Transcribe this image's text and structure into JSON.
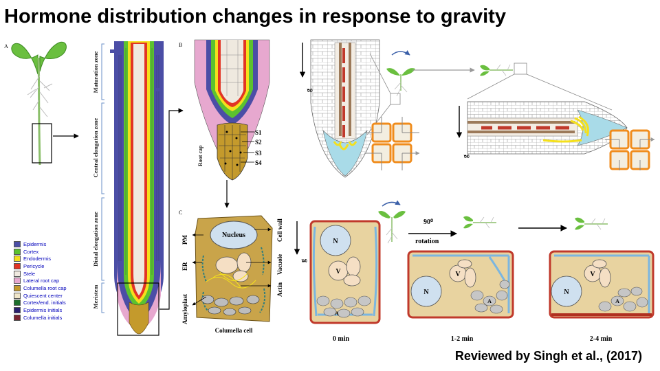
{
  "title": "Hormone distribution changes in response to gravity",
  "citation": "Reviewed by Singh et al., (2017)",
  "panels": {
    "a": "A",
    "b": "B",
    "c": "C"
  },
  "zones": [
    "Maturation zone",
    "Central elongation zone",
    "Distal elongation zone",
    "Meristem"
  ],
  "legend": [
    {
      "label": "Epidermis",
      "color": "#4b4ea6"
    },
    {
      "label": "Cortex",
      "color": "#5cc22f"
    },
    {
      "label": "Endodermis",
      "color": "#f4e01c"
    },
    {
      "label": "Pericycle",
      "color": "#e23424"
    },
    {
      "label": "Stele",
      "color": "#efe9df"
    },
    {
      "label": "Lateral root cap",
      "color": "#e7a8cf"
    },
    {
      "label": "Columella root cap",
      "color": "#c49a2c"
    },
    {
      "label": "Quiescent center",
      "color": "#f0e6c9"
    },
    {
      "label": "Cortex/end. initials",
      "color": "#1d6e2c"
    },
    {
      "label": "Epidermis initials",
      "color": "#2b1f6e"
    },
    {
      "label": "Columella initials",
      "color": "#7a2430"
    }
  ],
  "root_cap_label": "Root cap",
  "tiers": [
    "S1",
    "S2",
    "S3",
    "S4"
  ],
  "cell": {
    "nucleus": "Nucleus",
    "pm": "PM",
    "er": "ER",
    "amyloplast": "Amyloplast",
    "cell_wall": "Cell wall",
    "vacuole": "Vacuole",
    "actin": "Actin",
    "caption": "Columella cell"
  },
  "gravity_label": "g",
  "rotation": {
    "angle": "90⁰",
    "label": "rotation"
  },
  "stages": [
    {
      "time": "0 min",
      "n": "N",
      "v": "V",
      "a": "A"
    },
    {
      "time": "1-2 min",
      "n": "N",
      "v": "V",
      "a": "A"
    },
    {
      "time": "2-4 min",
      "n": "N",
      "v": "V",
      "a": "A"
    }
  ]
}
